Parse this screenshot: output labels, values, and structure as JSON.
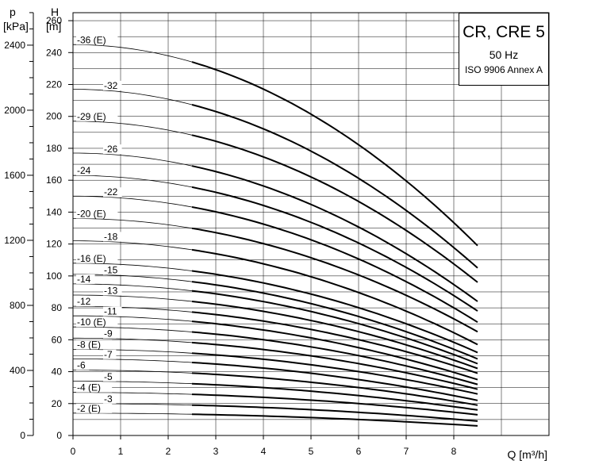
{
  "colors": {
    "curve": "#000000",
    "grid": "#000000",
    "background": "#ffffff"
  },
  "infobox": {
    "title": "CR, CRE 5",
    "frequency": "50 Hz",
    "standard": "ISO 9906 Annex A"
  },
  "chart_data": {
    "type": "line",
    "title": "CR, CRE 5",
    "xlabel": "Q [m³/h]",
    "ylabel": "H",
    "ylabel_unit": "[m]",
    "y2label": "p",
    "y2label_unit": "[kPa]",
    "xlim": [
      0,
      10
    ],
    "ylim": [
      0,
      265
    ],
    "x_ticks": [
      "0",
      "1",
      "2",
      "3",
      "4",
      "5",
      "6",
      "7",
      "8"
    ],
    "y_ticks": [
      "0",
      "20",
      "40",
      "60",
      "80",
      "100",
      "120",
      "140",
      "160",
      "180",
      "200",
      "220",
      "240",
      "260"
    ],
    "y2_ticks": [
      "0",
      "400",
      "800",
      "1200",
      "1600",
      "2000",
      "2400"
    ],
    "grid": true,
    "operating_range_start_q": 2.5,
    "q_max": 8.5,
    "series": [
      {
        "name": "-36 (E)",
        "h0": 245,
        "h_end": 119
      },
      {
        "name": "-32",
        "h0": 217,
        "h_end": 105
      },
      {
        "name": "-29 (E)",
        "h0": 197,
        "h_end": 96
      },
      {
        "name": "-26",
        "h0": 177,
        "h_end": 84
      },
      {
        "name": "-24",
        "h0": 163,
        "h_end": 78
      },
      {
        "name": "-22",
        "h0": 150,
        "h_end": 71
      },
      {
        "name": "-20 (E)",
        "h0": 136,
        "h_end": 65
      },
      {
        "name": "-18",
        "h0": 122,
        "h_end": 57
      },
      {
        "name": "-16 (E)",
        "h0": 108,
        "h_end": 52
      },
      {
        "name": "-15",
        "h0": 101,
        "h_end": 48
      },
      {
        "name": "-14",
        "h0": 95,
        "h_end": 45
      },
      {
        "name": "-13",
        "h0": 88,
        "h_end": 42
      },
      {
        "name": "-12",
        "h0": 81,
        "h_end": 39
      },
      {
        "name": "-11",
        "h0": 75,
        "h_end": 35
      },
      {
        "name": "-10 (E)",
        "h0": 68,
        "h_end": 32
      },
      {
        "name": "-9",
        "h0": 61,
        "h_end": 29
      },
      {
        "name": "-8 (E)",
        "h0": 54,
        "h_end": 26
      },
      {
        "name": "-7",
        "h0": 48,
        "h_end": 22
      },
      {
        "name": "-6",
        "h0": 41,
        "h_end": 19
      },
      {
        "name": "-5",
        "h0": 34,
        "h_end": 16
      },
      {
        "name": "-4 (E)",
        "h0": 27,
        "h_end": 13
      },
      {
        "name": "-3",
        "h0": 20,
        "h_end": 9
      },
      {
        "name": "-2 (E)",
        "h0": 14,
        "h_end": 6
      }
    ]
  }
}
